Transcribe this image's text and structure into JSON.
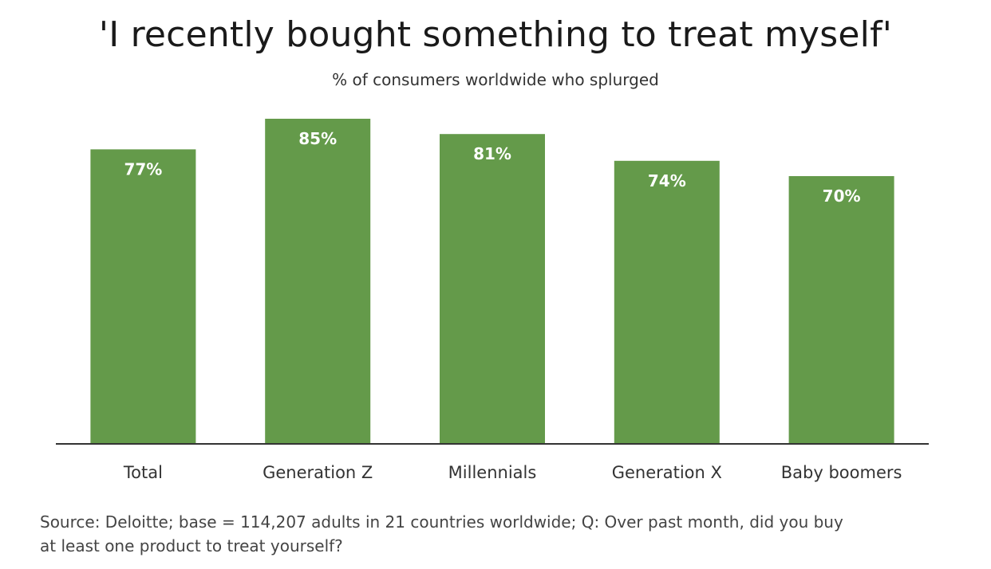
{
  "chart_data": {
    "type": "bar",
    "title": "'I recently bought something to treat myself'",
    "subtitle": "% of consumers worldwide who splurged",
    "categories": [
      "Total",
      "Generation Z",
      "Millennials",
      "Generation X",
      "Baby boomers"
    ],
    "values": [
      77,
      85,
      81,
      74,
      70
    ],
    "data_labels": [
      "77%",
      "85%",
      "81%",
      "74%",
      "70%"
    ],
    "xlabel": "",
    "ylabel": "",
    "ylim": [
      0,
      100
    ],
    "grid": false,
    "legend": "none",
    "bar_color": "#649a4a",
    "label_color": "#ffffff",
    "axis_color": "#333333"
  },
  "source": {
    "line1": "Source: Deloitte; base = 114,207 adults in 21 countries worldwide; Q: Over past month, did you buy",
    "line2": "at least one product to treat yourself?"
  }
}
